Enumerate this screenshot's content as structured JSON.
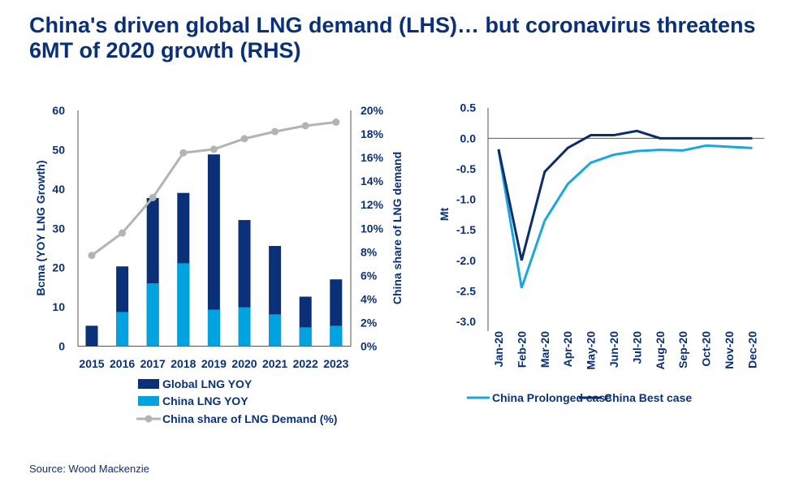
{
  "title": "China's driven global LNG demand (LHS)… but coronavirus threatens 6MT of 2020 growth (RHS)",
  "source": "Source: Wood Mackenzie",
  "colors": {
    "global": "#0a3178",
    "china": "#00a3e0",
    "share": "#b3b3b3",
    "prolonged": "#1aa7e0",
    "best": "#0a2d6e"
  },
  "chart_data": [
    {
      "type": "bar",
      "stacked": true,
      "categories": [
        "2015",
        "2016",
        "2017",
        "2018",
        "2019",
        "2020",
        "2021",
        "2022",
        "2023"
      ],
      "ylabel": "Bcma (YOY LNG Growth)",
      "y2label": "China share of LNG demand",
      "ylim": [
        0,
        60
      ],
      "yticks": [
        "0",
        "10",
        "20",
        "30",
        "40",
        "50",
        "60"
      ],
      "y2lim": [
        0,
        20
      ],
      "y2ticks": [
        "0%",
        "2%",
        "4%",
        "6%",
        "8%",
        "10%",
        "12%",
        "14%",
        "16%",
        "18%",
        "20%"
      ],
      "legend_position": "bottom",
      "series": [
        {
          "name": "Global LNG YOY",
          "type": "bar",
          "total_values": [
            5.2,
            20.3,
            37.7,
            39.0,
            48.8,
            32.1,
            25.5,
            12.6,
            17.0
          ]
        },
        {
          "name": "China LNG YOY",
          "type": "bar",
          "values": [
            0,
            8.7,
            16.0,
            21.1,
            9.3,
            9.9,
            8.1,
            4.8,
            5.2
          ]
        },
        {
          "name": "China share of LNG Demand (%)",
          "type": "line",
          "axis": "right",
          "values": [
            7.7,
            9.6,
            12.6,
            16.4,
            16.7,
            17.6,
            18.2,
            18.7,
            19.0
          ]
        }
      ]
    },
    {
      "type": "line",
      "categories": [
        "Jan-20",
        "Feb-20",
        "Mar-20",
        "Apr-20",
        "May-20",
        "Jun-20",
        "Jul-20",
        "Aug-20",
        "Sep-20",
        "Oct-20",
        "Nov-20",
        "Dec-20"
      ],
      "ylabel": "Mt",
      "ylim": [
        -3.0,
        0.5
      ],
      "yticks": [
        "0.5",
        "0.0",
        "-0.5",
        "-1.0",
        "-1.5",
        "-2.0",
        "-2.5",
        "-3.0"
      ],
      "legend_position": "bottom",
      "series": [
        {
          "name": "China Prolonged case",
          "values": [
            -0.2,
            -2.45,
            -1.35,
            -0.75,
            -0.4,
            -0.27,
            -0.21,
            -0.19,
            -0.2,
            -0.12,
            -0.14,
            -0.16
          ]
        },
        {
          "name": "China Best case",
          "values": [
            -0.18,
            -2.0,
            -0.55,
            -0.16,
            0.05,
            0.05,
            0.12,
            0.0,
            0.0,
            0.0,
            0.0,
            0.0
          ]
        }
      ]
    }
  ]
}
